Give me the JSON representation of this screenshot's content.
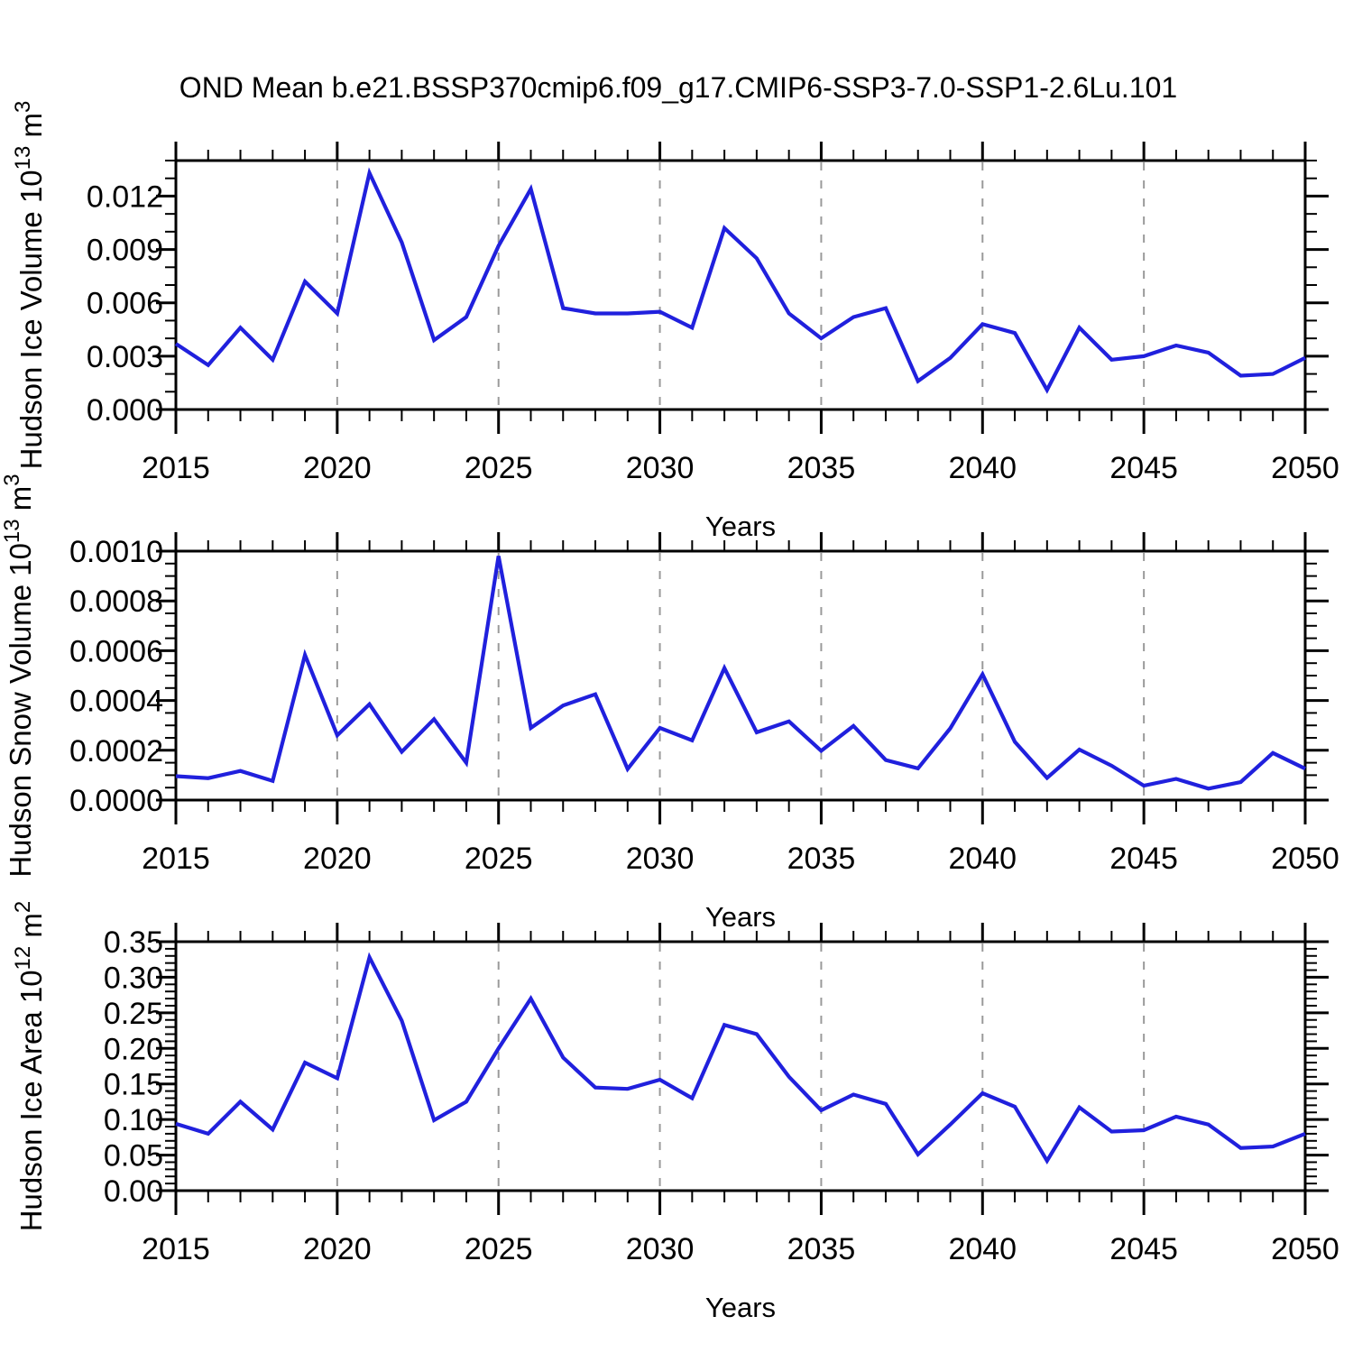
{
  "title": "OND Mean b.e21.BSSP370cmip6.f09_g17.CMIP6-SSP3-7.0-SSP1-2.6Lu.101",
  "chart_data": {
    "type": "line",
    "title": "OND Mean b.e21.BSSP370cmip6.f09_g17.CMIP6-SSP3-7.0-SSP1-2.6Lu.101",
    "line_color": "#2020dd",
    "grid_color": "#9a9a9a",
    "axis_color": "#000000",
    "legend": "none",
    "grid": "vertical-dashed-at-major-years",
    "xlabel": "Years",
    "xlim": [
      2015,
      2050
    ],
    "x_minor_step": 1,
    "x_major_ticks": [
      2015,
      2020,
      2025,
      2030,
      2035,
      2040,
      2045,
      2050
    ],
    "x_tick_labels": [
      "2015",
      "2020",
      "2025",
      "2030",
      "2035",
      "2040",
      "2045",
      "2050"
    ],
    "grid_years": [
      2020,
      2025,
      2030,
      2035,
      2040,
      2045
    ],
    "years": [
      2015,
      2016,
      2017,
      2018,
      2019,
      2020,
      2021,
      2022,
      2023,
      2024,
      2025,
      2026,
      2027,
      2028,
      2029,
      2030,
      2031,
      2032,
      2033,
      2034,
      2035,
      2036,
      2037,
      2038,
      2039,
      2040,
      2041,
      2042,
      2043,
      2044,
      2045,
      2046,
      2047,
      2048,
      2049,
      2050
    ],
    "panels": [
      {
        "id": "hudson-ice-volume",
        "ylabel_text": "Hudson Ice Volume 10^13 m^3",
        "ylabel_parts": [
          {
            "t": "Hudson Ice Volume 10",
            "sup": false
          },
          {
            "t": "13",
            "sup": true
          },
          {
            "t": " m",
            "sup": false
          },
          {
            "t": "3",
            "sup": true
          }
        ],
        "ylim": [
          0,
          0.014
        ],
        "y_minor_step": 0.001,
        "y_major_ticks": [
          0,
          0.003,
          0.006,
          0.009,
          0.012
        ],
        "y_tick_labels": [
          "0.000",
          "0.003",
          "0.006",
          "0.009",
          "0.012"
        ],
        "values": [
          0.0037,
          0.0025,
          0.0046,
          0.0028,
          0.0072,
          0.0054,
          0.0133,
          0.0094,
          0.0039,
          0.0052,
          0.0092,
          0.0124,
          0.0057,
          0.0054,
          0.0054,
          0.0055,
          0.0046,
          0.0102,
          0.0085,
          0.0054,
          0.004,
          0.0052,
          0.0057,
          0.0016,
          0.0029,
          0.0048,
          0.0043,
          0.0011,
          0.0046,
          0.0028,
          0.003,
          0.0036,
          0.0032,
          0.0019,
          0.002,
          0.0029
        ]
      },
      {
        "id": "hudson-snow-volume",
        "ylabel_text": "Hudson Snow Volume 10^13 m^3",
        "ylabel_parts": [
          {
            "t": "Hudson Snow Volume 10",
            "sup": false
          },
          {
            "t": "13",
            "sup": true
          },
          {
            "t": " m",
            "sup": false
          },
          {
            "t": "3",
            "sup": true
          }
        ],
        "ylim": [
          0,
          0.001
        ],
        "y_minor_step": 5e-05,
        "y_major_ticks": [
          0,
          0.0002,
          0.0004,
          0.0006,
          0.0008,
          0.001
        ],
        "y_tick_labels": [
          "0.0000",
          "0.0002",
          "0.0004",
          "0.0006",
          "0.0008",
          "0.0010"
        ],
        "values": [
          9.6e-05,
          8.8e-05,
          0.000117,
          7.7e-05,
          0.000583,
          0.00026,
          0.000385,
          0.000194,
          0.000325,
          0.00015,
          0.00098,
          0.00029,
          0.00038,
          0.000425,
          0.000125,
          0.00029,
          0.00024,
          0.00053,
          0.000272,
          0.000316,
          0.000198,
          0.000298,
          0.000161,
          0.000127,
          0.000288,
          0.000505,
          0.000234,
          8.9e-05,
          0.000203,
          0.000138,
          5.8e-05,
          8.5e-05,
          4.6e-05,
          7.2e-05,
          0.000189,
          0.000126
        ]
      },
      {
        "id": "hudson-ice-area",
        "ylabel_text": "Hudson Ice Area 10^12 m^2",
        "ylabel_parts": [
          {
            "t": "Hudson Ice Area 10",
            "sup": false
          },
          {
            "t": "12",
            "sup": true
          },
          {
            "t": " m",
            "sup": false
          },
          {
            "t": "2",
            "sup": true
          }
        ],
        "ylim": [
          0,
          0.35
        ],
        "y_minor_step": 0.01,
        "y_major_ticks": [
          0,
          0.05,
          0.1,
          0.15,
          0.2,
          0.25,
          0.3,
          0.35
        ],
        "y_tick_labels": [
          "0.00",
          "0.05",
          "0.10",
          "0.15",
          "0.20",
          "0.25",
          "0.30",
          "0.35"
        ],
        "values": [
          0.094,
          0.08,
          0.125,
          0.086,
          0.18,
          0.158,
          0.328,
          0.239,
          0.099,
          0.125,
          0.2,
          0.27,
          0.187,
          0.145,
          0.143,
          0.156,
          0.13,
          0.233,
          0.22,
          0.16,
          0.113,
          0.135,
          0.122,
          0.051,
          0.093,
          0.137,
          0.118,
          0.042,
          0.117,
          0.083,
          0.085,
          0.104,
          0.093,
          0.06,
          0.062,
          0.08
        ]
      }
    ]
  }
}
